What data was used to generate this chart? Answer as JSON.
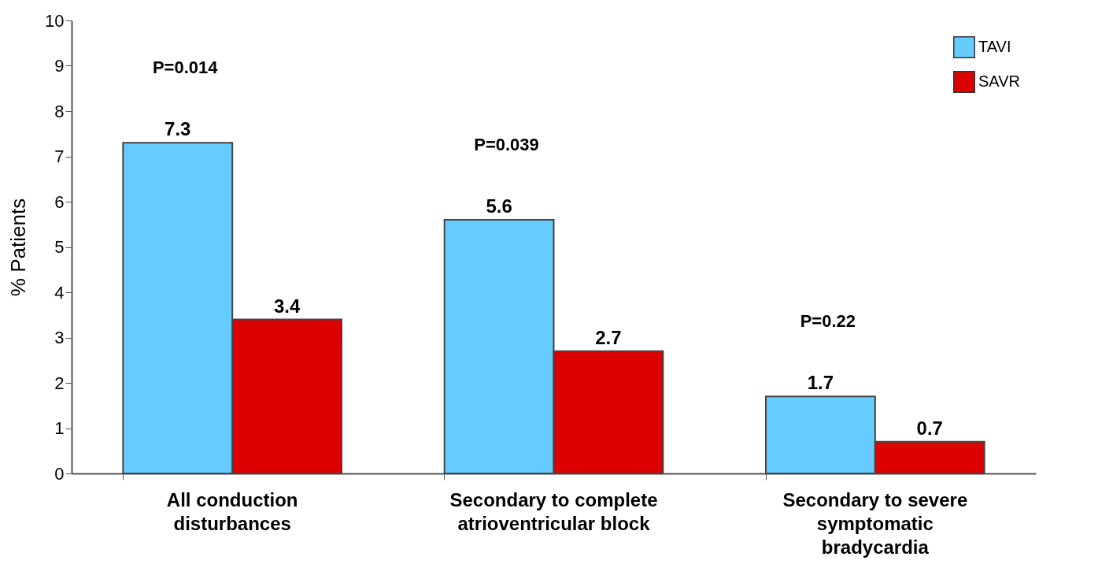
{
  "chart_data": {
    "type": "bar",
    "ylabel": "% Patients",
    "categories": [
      "All conduction disturbances",
      "Secondary to complete atrioventricular block",
      "Secondary to severe symptomatic bradycardia"
    ],
    "series": [
      {
        "name": "TAVI",
        "color": "#66ccff",
        "values": [
          7.3,
          5.6,
          1.7
        ]
      },
      {
        "name": "SAVR",
        "color": "#dd0000",
        "values": [
          3.4,
          2.7,
          0.7
        ]
      }
    ],
    "ylim": [
      0,
      10
    ],
    "yticks": [
      0,
      1,
      2,
      3,
      4,
      5,
      6,
      7,
      8,
      9,
      10
    ],
    "grid": false,
    "legend": "top right",
    "data_labels": true,
    "annotations": [
      "P=0.014",
      "P=0.039",
      "P=0.22"
    ]
  }
}
